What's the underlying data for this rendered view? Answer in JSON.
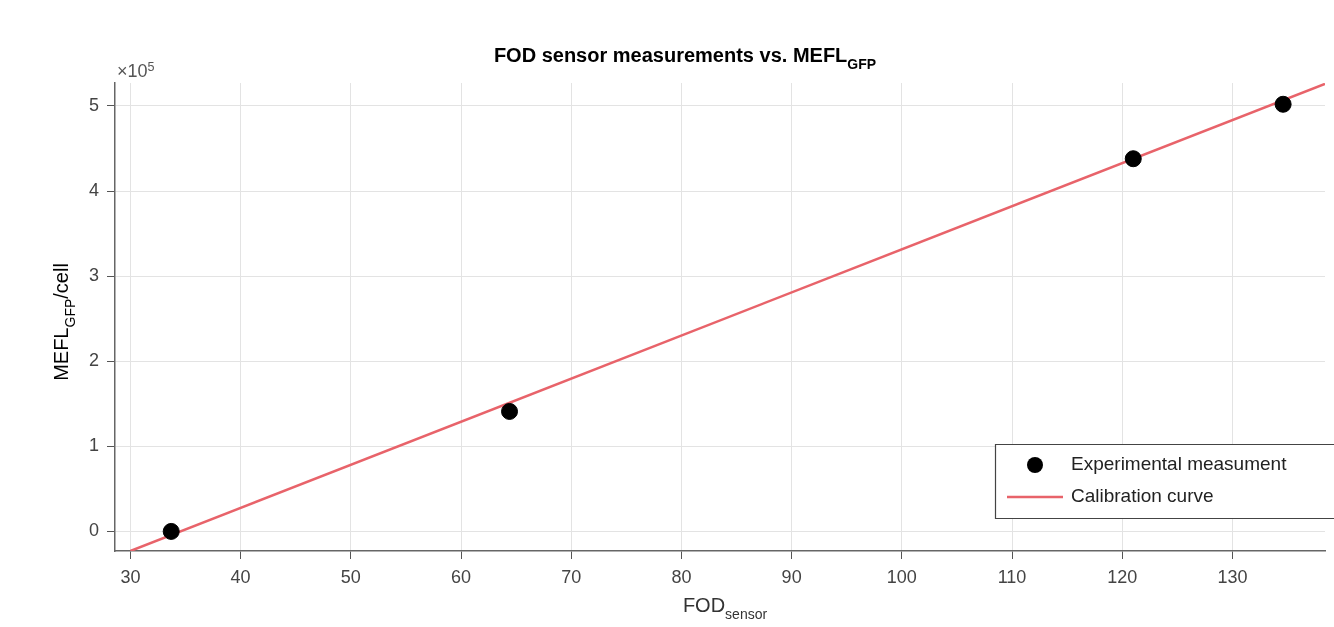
{
  "chart_data": {
    "type": "scatter",
    "title": "FOD sensor measurements vs. MEFL$_{GFP}$",
    "xlabel": "FOD$_{sensor}$",
    "ylabel": "MEFL$_{GFP}$/cell",
    "annotations": [
      "×10$^{5}$"
    ],
    "xlim": [
      28.6,
      138.4
    ],
    "ylim": [
      -0.23,
      5.27
    ],
    "xticks": [
      30,
      40,
      50,
      60,
      70,
      80,
      90,
      100,
      110,
      120,
      130
    ],
    "yticks": [
      0,
      1,
      2,
      3,
      4,
      5
    ],
    "grid": true,
    "legend": "bottom right",
    "series": [
      {
        "name": "Experimental measument",
        "type": "scatter",
        "color": "#000000",
        "marker": "circle",
        "x": [
          33.7,
          64.4,
          121.0,
          134.6
        ],
        "values": [
          0.0,
          1.41,
          4.38,
          5.02
        ]
      },
      {
        "name": "Calibration curve",
        "type": "line",
        "color": "#e8636a",
        "line_style": "solid",
        "marker": "none",
        "x": [
          30,
          138.4
        ],
        "values": [
          -0.23,
          5.26
        ]
      }
    ]
  }
}
